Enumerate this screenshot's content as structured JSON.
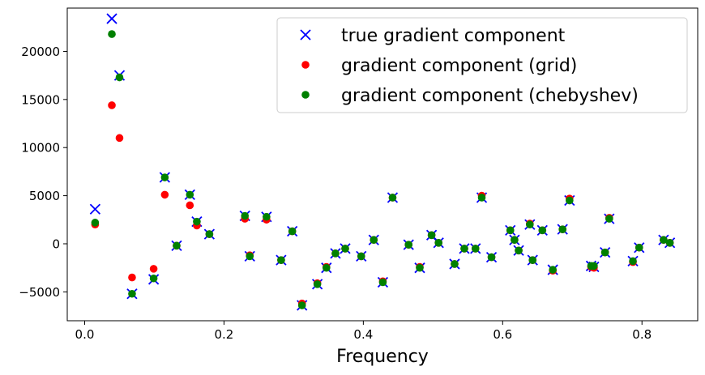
{
  "chart_data": {
    "type": "scatter",
    "title": "",
    "xlabel": "Frequency",
    "ylabel": "",
    "xlim": [
      -0.025,
      0.88
    ],
    "ylim": [
      -8000,
      24500
    ],
    "xticks": [
      0.0,
      0.2,
      0.4,
      0.6,
      0.8
    ],
    "xtick_labels": [
      "0.0",
      "0.2",
      "0.4",
      "0.6",
      "0.8"
    ],
    "yticks": [
      -5000,
      0,
      5000,
      10000,
      15000,
      20000
    ],
    "ytick_labels": [
      "−5000",
      "0",
      "5000",
      "10000",
      "15000",
      "20000"
    ],
    "grid": false,
    "legend_position": "top-right",
    "series": [
      {
        "name": "true gradient component",
        "marker": "x",
        "color": "#0000ff",
        "x": [
          0.015,
          0.039,
          0.05,
          0.068,
          0.099,
          0.115,
          0.132,
          0.151,
          0.161,
          0.179,
          0.23,
          0.237,
          0.261,
          0.282,
          0.298,
          0.312,
          0.334,
          0.347,
          0.36,
          0.374,
          0.397,
          0.415,
          0.428,
          0.442,
          0.465,
          0.481,
          0.498,
          0.508,
          0.531,
          0.545,
          0.561,
          0.57,
          0.584,
          0.611,
          0.617,
          0.623,
          0.639,
          0.643,
          0.657,
          0.672,
          0.686,
          0.696,
          0.727,
          0.731,
          0.747,
          0.753,
          0.787,
          0.796,
          0.831,
          0.84
        ],
        "y": [
          3600,
          23400,
          17500,
          -5200,
          -3700,
          6900,
          -200,
          5100,
          2300,
          1000,
          2900,
          -1300,
          2800,
          -1700,
          1300,
          -6400,
          -4200,
          -2500,
          -1000,
          -500,
          -1300,
          400,
          -4000,
          4800,
          -100,
          -2500,
          900,
          100,
          -2100,
          -500,
          -500,
          4800,
          -1400,
          1400,
          400,
          -700,
          2000,
          -1700,
          1400,
          -2700,
          1500,
          4500,
          -2300,
          -2400,
          -900,
          2600,
          -1800,
          -400,
          400,
          100
        ]
      },
      {
        "name": "gradient component (grid)",
        "marker": "o",
        "color": "#ff0000",
        "x": [
          0.015,
          0.039,
          0.05,
          0.068,
          0.099,
          0.115,
          0.132,
          0.151,
          0.161,
          0.179,
          0.23,
          0.237,
          0.261,
          0.282,
          0.298,
          0.312,
          0.334,
          0.347,
          0.36,
          0.374,
          0.397,
          0.415,
          0.428,
          0.442,
          0.465,
          0.481,
          0.498,
          0.508,
          0.531,
          0.545,
          0.561,
          0.57,
          0.584,
          0.611,
          0.617,
          0.623,
          0.639,
          0.643,
          0.657,
          0.672,
          0.686,
          0.696,
          0.727,
          0.731,
          0.747,
          0.753,
          0.787,
          0.796,
          0.831,
          0.84
        ],
        "y": [
          2000,
          14400,
          11000,
          -3500,
          -2600,
          5100,
          -200,
          4000,
          1900,
          1000,
          2600,
          -1200,
          2500,
          -1700,
          1300,
          -6200,
          -4100,
          -2400,
          -1000,
          -500,
          -1300,
          400,
          -3900,
          4800,
          -100,
          -2400,
          900,
          100,
          -2100,
          -500,
          -500,
          5000,
          -1400,
          1400,
          400,
          -700,
          2100,
          -1700,
          1400,
          -2800,
          1500,
          4700,
          -2400,
          -2500,
          -900,
          2700,
          -1900,
          -400,
          400,
          100
        ]
      },
      {
        "name": "gradient component (chebyshev)",
        "marker": "o",
        "color": "#008000",
        "x": [
          0.015,
          0.039,
          0.05,
          0.068,
          0.099,
          0.115,
          0.132,
          0.151,
          0.161,
          0.179,
          0.23,
          0.237,
          0.261,
          0.282,
          0.298,
          0.312,
          0.334,
          0.347,
          0.36,
          0.374,
          0.397,
          0.415,
          0.428,
          0.442,
          0.465,
          0.481,
          0.498,
          0.508,
          0.531,
          0.545,
          0.561,
          0.57,
          0.584,
          0.611,
          0.617,
          0.623,
          0.639,
          0.643,
          0.657,
          0.672,
          0.686,
          0.696,
          0.727,
          0.731,
          0.747,
          0.753,
          0.787,
          0.796,
          0.831,
          0.84
        ],
        "y": [
          2200,
          21800,
          17300,
          -5200,
          -3600,
          6900,
          -200,
          5100,
          2300,
          1000,
          2900,
          -1300,
          2800,
          -1700,
          1300,
          -6400,
          -4200,
          -2500,
          -1000,
          -500,
          -1300,
          400,
          -4000,
          4800,
          -100,
          -2500,
          900,
          100,
          -2100,
          -500,
          -500,
          4800,
          -1400,
          1400,
          400,
          -700,
          2000,
          -1700,
          1400,
          -2700,
          1500,
          4500,
          -2300,
          -2300,
          -900,
          2600,
          -1800,
          -400,
          400,
          100
        ]
      }
    ]
  }
}
